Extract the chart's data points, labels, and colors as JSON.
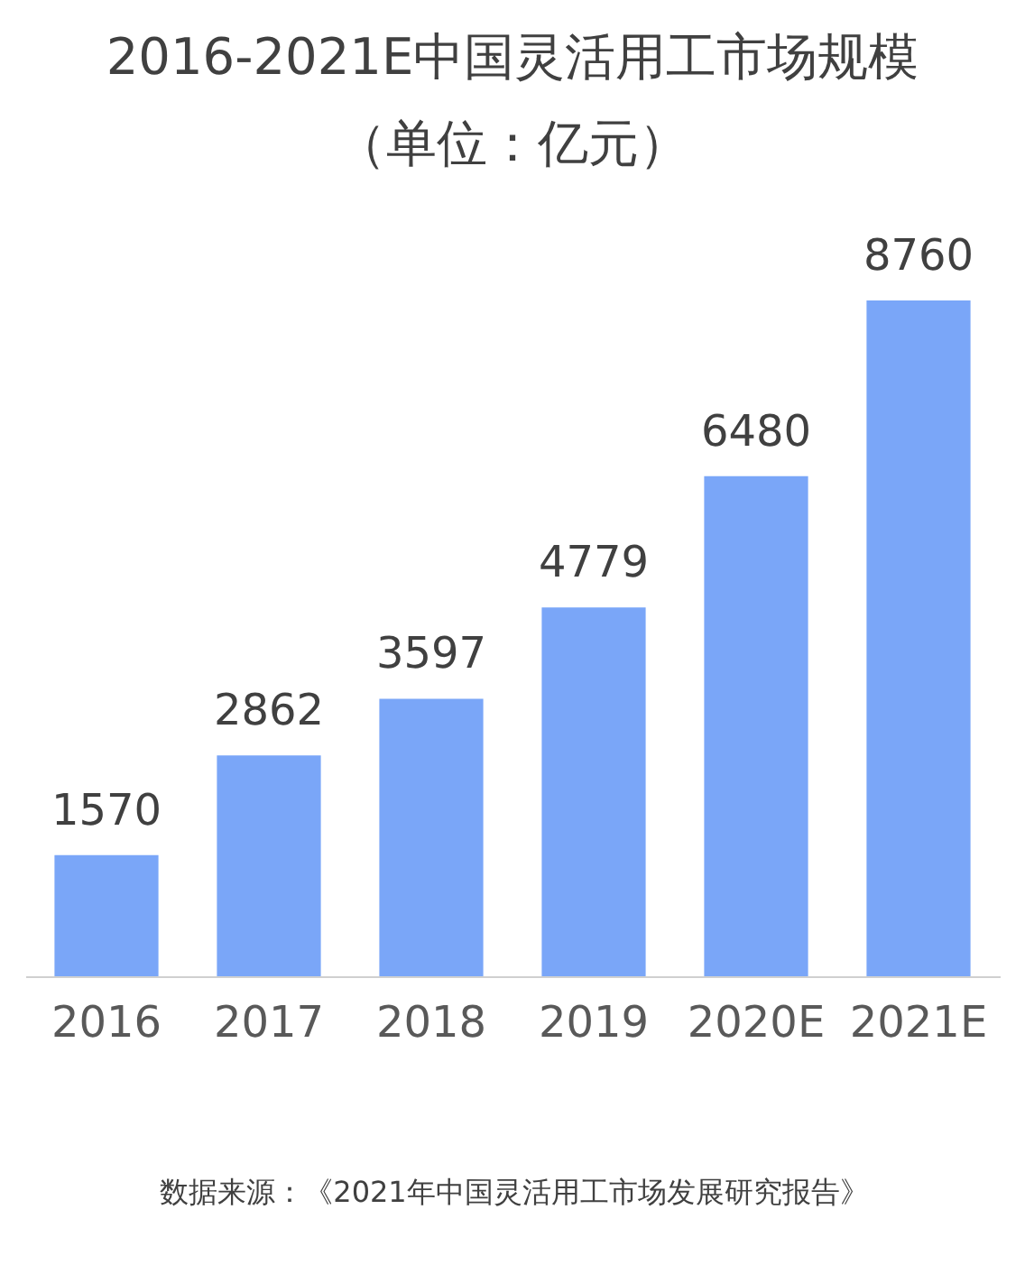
{
  "chart_data": {
    "type": "bar",
    "title": "2016-2021E中国灵活用工市场规模（单位：亿元）",
    "categories": [
      "2016",
      "2017",
      "2018",
      "2019",
      "2020E",
      "2021E"
    ],
    "values": [
      1570,
      2862,
      3597,
      4779,
      6480,
      8760
    ],
    "color": "#7aa6f8",
    "data_labels": true,
    "grid": false,
    "annotations": [
      "数据来源：《2021年中国灵活用工市场发展研究报告》"
    ]
  }
}
